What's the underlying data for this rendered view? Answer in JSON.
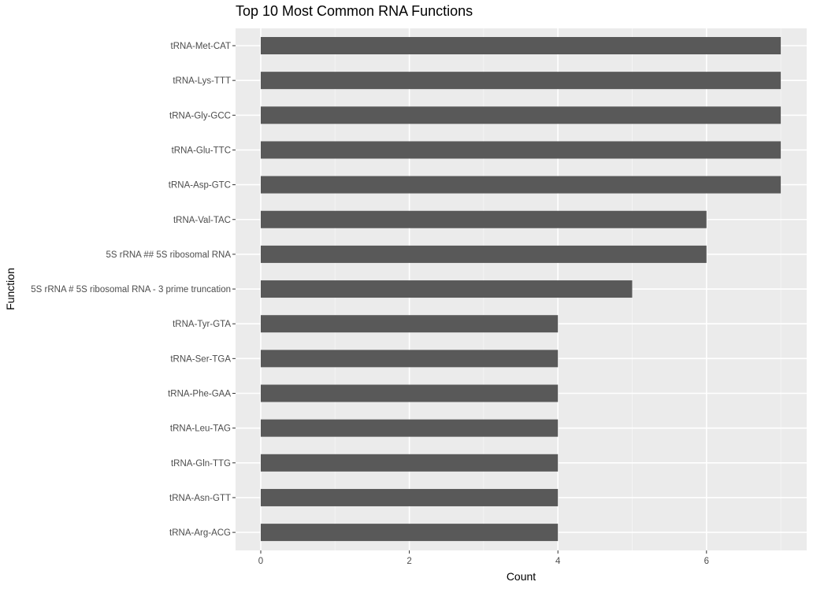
{
  "chart_data": {
    "type": "bar",
    "orientation": "horizontal",
    "title": "Top 10 Most Common RNA Functions",
    "xlabel": "Count",
    "ylabel": "Function",
    "xlim": [
      0,
      7.3
    ],
    "x_ticks": [
      0,
      2,
      4,
      6
    ],
    "grid": true,
    "categories": [
      "tRNA-Met-CAT",
      "tRNA-Lys-TTT",
      "tRNA-Gly-GCC",
      "tRNA-Glu-TTC",
      "tRNA-Asp-GTC",
      "tRNA-Val-TAC",
      "5S rRNA ## 5S ribosomal RNA",
      "5S rRNA # 5S ribosomal RNA - 3 prime truncation",
      "tRNA-Tyr-GTA",
      "tRNA-Ser-TGA",
      "tRNA-Phe-GAA",
      "tRNA-Leu-TAG",
      "tRNA-Gln-TTG",
      "tRNA-Asn-GTT",
      "tRNA-Arg-ACG"
    ],
    "values": [
      7,
      7,
      7,
      7,
      7,
      6,
      6,
      5,
      4,
      4,
      4,
      4,
      4,
      4,
      4
    ],
    "colors": {
      "bar": "#595959",
      "panel": "#ebebeb",
      "grid_major": "#ffffff",
      "grid_minor": "#f4f4f4",
      "tick_text": "#4d4d4d"
    }
  }
}
